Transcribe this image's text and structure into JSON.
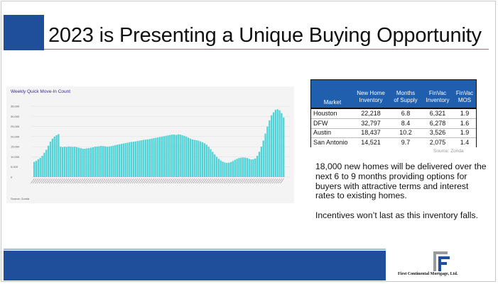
{
  "slide": {
    "title": "2023 is Presenting a Unique Buying Opportunity",
    "colors": {
      "brand_blue": "#1f4e9a",
      "table_header_blue": "#1f5fae",
      "chart_fill": "#4dd2d6"
    }
  },
  "chart": {
    "title": "Weekly Quick Move-In Count",
    "source": "Source: Zonda"
  },
  "chart_data": {
    "type": "bar",
    "title": "Weekly Quick Move-In Count",
    "xlabel": "",
    "ylabel": "",
    "ylim": [
      0,
      35000
    ],
    "yticks": [
      "35,000",
      "30,000",
      "25,000",
      "20,000",
      "15,000",
      "10,000",
      "5,000",
      "0"
    ],
    "grid": true,
    "values": [
      7500,
      8000,
      8800,
      9500,
      10500,
      12000,
      13500,
      15500,
      17500,
      19000,
      20000,
      20700,
      21200,
      15000,
      14800,
      15000,
      14900,
      15100,
      15000,
      14900,
      15000,
      14800,
      14500,
      14300,
      14000,
      14000,
      14200,
      14300,
      14500,
      14700,
      15000,
      15100,
      15200,
      15400,
      15300,
      15200,
      15000,
      15100,
      15300,
      15500,
      15800,
      16000,
      16200,
      16400,
      16600,
      16800,
      17000,
      17200,
      17400,
      17500,
      17600,
      17800,
      18000,
      18200,
      18400,
      18500,
      18600,
      18800,
      19000,
      19200,
      19400,
      19600,
      19800,
      20000,
      20200,
      20400,
      20600,
      20800,
      21000,
      21000,
      20800,
      21100,
      21000,
      20700,
      20400,
      20000,
      19500,
      19000,
      18600,
      18400,
      18200,
      18000,
      17600,
      17200,
      16700,
      16000,
      15000,
      13800,
      12500,
      11200,
      10000,
      9000,
      8200,
      7600,
      7200,
      7000,
      7100,
      7400,
      7900,
      8500,
      9000,
      9400,
      9600,
      9700,
      9600,
      9400,
      9000,
      8700,
      8800,
      9200,
      10500,
      12500,
      15000,
      18000,
      21500,
      25000,
      28000,
      30500,
      32000,
      33200,
      33500,
      33000,
      31500,
      29500
    ]
  },
  "table": {
    "headers": {
      "market": "Market",
      "new_home_1": "New Home",
      "new_home_2": "Inventory",
      "months_1": "Months",
      "months_2": "of Supply",
      "finvac_inv_1": "FinVac",
      "finvac_inv_2": "Inventory",
      "finvac_mos_1": "FinVac",
      "finvac_mos_2": "MOS"
    },
    "rows": [
      {
        "market": "Houston",
        "new_home_inventory": "22,218",
        "months_supply": "6.8",
        "finvac_inventory": "6,321",
        "finvac_mos": "1.9"
      },
      {
        "market": "DFW",
        "new_home_inventory": "32,797",
        "months_supply": "8.4",
        "finvac_inventory": "6,278",
        "finvac_mos": "1.6"
      },
      {
        "market": "Austin",
        "new_home_inventory": "18,437",
        "months_supply": "10.2",
        "finvac_inventory": "3,526",
        "finvac_mos": "1.9"
      },
      {
        "market": "San Antonio",
        "new_home_inventory": "14,521",
        "months_supply": "9.7",
        "finvac_inventory": "2,075",
        "finvac_mos": "1.4"
      }
    ],
    "source": "Source: Zonda"
  },
  "body": {
    "paragraph1": "18,000 new homes will be delivered over the next 6 to 9 months providing options for buyers with attractive terms and interest rates to existing homes.",
    "paragraph2": "Incentives won’t last as this inventory falls."
  },
  "footer": {
    "logo_text": "First Continental Mortgage, Ltd."
  }
}
